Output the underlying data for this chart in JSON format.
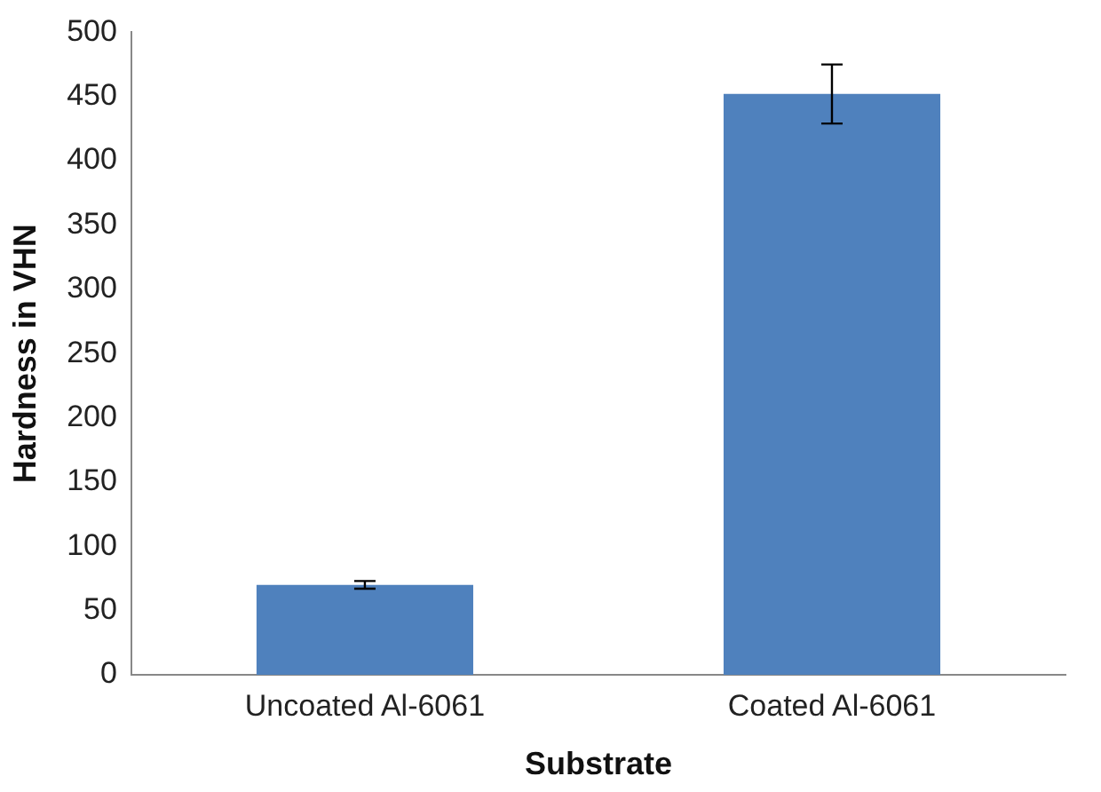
{
  "chart_data": {
    "type": "bar",
    "xlabel": "Substrate",
    "ylabel": "Hardness in VHN",
    "categories": [
      "Uncoated Al-6061",
      "Coated Al-6061"
    ],
    "values": [
      70,
      452
    ],
    "errors": [
      3,
      23
    ],
    "color": "#4f81bd",
    "ylim": [
      0,
      500
    ],
    "yticks": [
      0,
      50,
      100,
      150,
      200,
      250,
      300,
      350,
      400,
      450,
      500
    ],
    "grid": false,
    "legend": false
  }
}
